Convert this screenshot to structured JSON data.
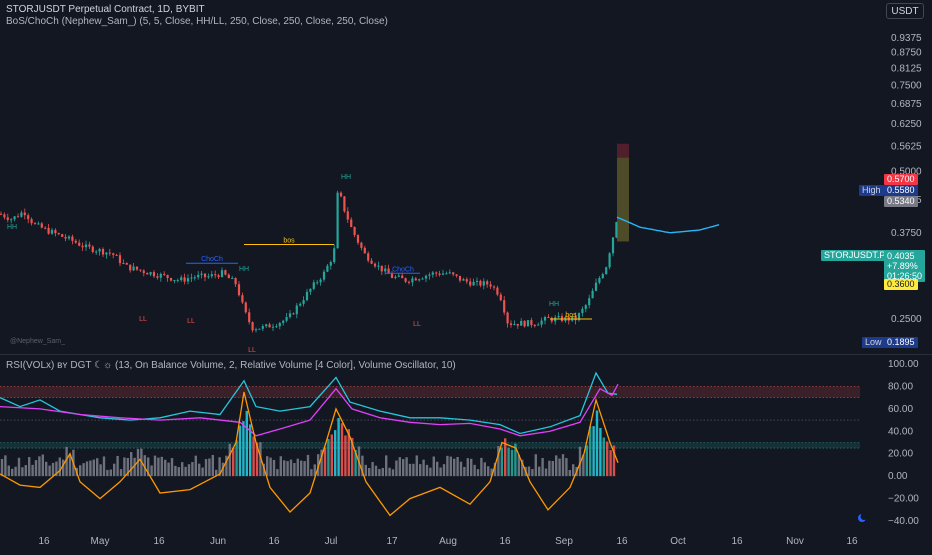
{
  "header": {
    "symbol_line": "STORJUSDT Perpetual Contract, 1D, BYBIT",
    "indicator_line": "BoS/ChoCh (Nephew_Sam_) (5, 5, Close, HH/LL, 250, Close, 250, Close, 250, Close)",
    "currency_button": "USDT"
  },
  "watermark": "@Nephew_Sam_",
  "oscillator_title": "RSI(VOLx) вʏ DGT ☾☼ (13, On Balance Volume, 2, Relative Volume [4 Color], Volume Oscillator, 10)",
  "price_scale": {
    "ticks": [
      "0.9375",
      "0.8750",
      "0.8125",
      "0.7500",
      "0.6875",
      "0.6250",
      "0.5625",
      "0.5000",
      "0.4375",
      "0.3750",
      "0.3125",
      "0.2500"
    ],
    "high_label": "High",
    "high_value": "0.5580",
    "low_label": "Low",
    "low_value": "0.1895",
    "target_value": "0.5700",
    "entry_value": "0.5340",
    "stop_value": "0.3600",
    "symbol_label": "STORJUSDT.P",
    "last_price": "0.4035",
    "change_pct": "+7.89%",
    "countdown": "01:26:50"
  },
  "colors": {
    "background": "#131722",
    "up": "#26a69a",
    "down": "#ef5350",
    "neutral": "#787b86",
    "rsi": "#26c6da",
    "obv": "#e040fb",
    "vol_osc": "#ff9800",
    "structure": "#ffc107",
    "choch": "#2962ff",
    "projection": "#29b6f6",
    "label_hh": "#26a69a",
    "label_ll": "#ef5350"
  },
  "chart_data": [
    {
      "type": "candlestick",
      "y_scale": "log",
      "ylim": [
        0.1895,
        0.9375
      ],
      "x_ticks": [
        "16",
        "May",
        "16",
        "Jun",
        "16",
        "Jul",
        "17",
        "Aug",
        "16",
        "Sep",
        "16",
        "Oct",
        "16",
        "Nov",
        "16"
      ],
      "series": [
        {
          "name": "price",
          "points": [
            {
              "x": 0,
              "y": 0.41
            },
            {
              "x": 12,
              "y": 0.4
            },
            {
              "x": 24,
              "y": 0.415
            },
            {
              "x": 34,
              "y": 0.39
            },
            {
              "x": 46,
              "y": 0.38
            },
            {
              "x": 60,
              "y": 0.37
            },
            {
              "x": 74,
              "y": 0.36
            },
            {
              "x": 86,
              "y": 0.35
            },
            {
              "x": 100,
              "y": 0.345
            },
            {
              "x": 112,
              "y": 0.34
            },
            {
              "x": 126,
              "y": 0.32
            },
            {
              "x": 138,
              "y": 0.315
            },
            {
              "x": 152,
              "y": 0.31
            },
            {
              "x": 166,
              "y": 0.305
            },
            {
              "x": 180,
              "y": 0.3
            },
            {
              "x": 194,
              "y": 0.305
            },
            {
              "x": 208,
              "y": 0.305
            },
            {
              "x": 222,
              "y": 0.31
            },
            {
              "x": 236,
              "y": 0.295
            },
            {
              "x": 244,
              "y": 0.26
            },
            {
              "x": 252,
              "y": 0.24
            },
            {
              "x": 264,
              "y": 0.24
            },
            {
              "x": 276,
              "y": 0.245
            },
            {
              "x": 288,
              "y": 0.25
            },
            {
              "x": 300,
              "y": 0.27
            },
            {
              "x": 312,
              "y": 0.29
            },
            {
              "x": 324,
              "y": 0.31
            },
            {
              "x": 334,
              "y": 0.34
            },
            {
              "x": 338,
              "y": 0.46
            },
            {
              "x": 344,
              "y": 0.42
            },
            {
              "x": 352,
              "y": 0.38
            },
            {
              "x": 364,
              "y": 0.34
            },
            {
              "x": 378,
              "y": 0.32
            },
            {
              "x": 392,
              "y": 0.305
            },
            {
              "x": 406,
              "y": 0.3
            },
            {
              "x": 420,
              "y": 0.305
            },
            {
              "x": 434,
              "y": 0.31
            },
            {
              "x": 448,
              "y": 0.31
            },
            {
              "x": 462,
              "y": 0.3
            },
            {
              "x": 476,
              "y": 0.295
            },
            {
              "x": 490,
              "y": 0.295
            },
            {
              "x": 500,
              "y": 0.28
            },
            {
              "x": 508,
              "y": 0.245
            },
            {
              "x": 520,
              "y": 0.245
            },
            {
              "x": 534,
              "y": 0.245
            },
            {
              "x": 548,
              "y": 0.25
            },
            {
              "x": 562,
              "y": 0.25
            },
            {
              "x": 576,
              "y": 0.25
            },
            {
              "x": 588,
              "y": 0.27
            },
            {
              "x": 598,
              "y": 0.3
            },
            {
              "x": 606,
              "y": 0.32
            },
            {
              "x": 612,
              "y": 0.36
            },
            {
              "x": 617,
              "y": 0.4035
            }
          ]
        },
        {
          "name": "projection",
          "points": [
            {
              "x": 617,
              "y": 0.4035
            },
            {
              "x": 640,
              "y": 0.385
            },
            {
              "x": 670,
              "y": 0.375
            },
            {
              "x": 700,
              "y": 0.38
            },
            {
              "x": 720,
              "y": 0.39
            }
          ]
        }
      ],
      "levels": [
        {
          "label": "bos",
          "y": 0.355
        },
        {
          "label": "ChoCh",
          "y": 0.325
        },
        {
          "label": "bos",
          "y": 0.25
        },
        {
          "label": "ChoCh",
          "y": 0.31
        }
      ],
      "swing_labels": [
        "HH",
        "LL",
        "LL",
        "HH",
        "LL",
        "HH",
        "LL",
        "HH"
      ],
      "position": {
        "target": 0.57,
        "entry": 0.534,
        "stop": 0.36
      }
    },
    {
      "type": "line",
      "ylim": [
        -40,
        100
      ],
      "y_ticks": [
        "100.00",
        "80.00",
        "60.00",
        "40.00",
        "20.00",
        "0.00",
        "−20.00",
        "−40.00"
      ],
      "levels": [
        80,
        70,
        50,
        30,
        25
      ],
      "series": [
        {
          "name": "RSI",
          "points": [
            {
              "x": 0,
              "y": 70
            },
            {
              "x": 20,
              "y": 62
            },
            {
              "x": 40,
              "y": 68
            },
            {
              "x": 60,
              "y": 58
            },
            {
              "x": 80,
              "y": 55
            },
            {
              "x": 100,
              "y": 52
            },
            {
              "x": 130,
              "y": 50
            },
            {
              "x": 160,
              "y": 52
            },
            {
              "x": 190,
              "y": 58
            },
            {
              "x": 220,
              "y": 55
            },
            {
              "x": 244,
              "y": 85
            },
            {
              "x": 256,
              "y": 62
            },
            {
              "x": 280,
              "y": 58
            },
            {
              "x": 310,
              "y": 62
            },
            {
              "x": 336,
              "y": 88
            },
            {
              "x": 350,
              "y": 66
            },
            {
              "x": 380,
              "y": 58
            },
            {
              "x": 410,
              "y": 52
            },
            {
              "x": 440,
              "y": 52
            },
            {
              "x": 470,
              "y": 50
            },
            {
              "x": 500,
              "y": 46
            },
            {
              "x": 520,
              "y": 38
            },
            {
              "x": 550,
              "y": 44
            },
            {
              "x": 580,
              "y": 54
            },
            {
              "x": 596,
              "y": 92
            },
            {
              "x": 608,
              "y": 74
            },
            {
              "x": 617,
              "y": 73
            }
          ]
        },
        {
          "name": "OBV",
          "points": [
            {
              "x": 0,
              "y": 62
            },
            {
              "x": 40,
              "y": 60
            },
            {
              "x": 80,
              "y": 55
            },
            {
              "x": 120,
              "y": 52
            },
            {
              "x": 160,
              "y": 50
            },
            {
              "x": 200,
              "y": 52
            },
            {
              "x": 240,
              "y": 48
            },
            {
              "x": 256,
              "y": 36
            },
            {
              "x": 280,
              "y": 42
            },
            {
              "x": 310,
              "y": 50
            },
            {
              "x": 336,
              "y": 78
            },
            {
              "x": 352,
              "y": 60
            },
            {
              "x": 380,
              "y": 52
            },
            {
              "x": 410,
              "y": 48
            },
            {
              "x": 440,
              "y": 46
            },
            {
              "x": 470,
              "y": 47
            },
            {
              "x": 500,
              "y": 42
            },
            {
              "x": 520,
              "y": 36
            },
            {
              "x": 550,
              "y": 40
            },
            {
              "x": 580,
              "y": 48
            },
            {
              "x": 600,
              "y": 78
            },
            {
              "x": 612,
              "y": 72
            },
            {
              "x": 618,
              "y": 82
            }
          ]
        },
        {
          "name": "Volume Oscillator",
          "points": [
            {
              "x": 0,
              "y": 2
            },
            {
              "x": 20,
              "y": -8
            },
            {
              "x": 40,
              "y": -10
            },
            {
              "x": 60,
              "y": 5
            },
            {
              "x": 70,
              "y": 20
            },
            {
              "x": 80,
              "y": -5
            },
            {
              "x": 100,
              "y": -20
            },
            {
              "x": 120,
              "y": -5
            },
            {
              "x": 140,
              "y": 15
            },
            {
              "x": 160,
              "y": -15
            },
            {
              "x": 190,
              "y": -12
            },
            {
              "x": 220,
              "y": 2
            },
            {
              "x": 236,
              "y": 30
            },
            {
              "x": 244,
              "y": 75
            },
            {
              "x": 256,
              "y": 30
            },
            {
              "x": 270,
              "y": -10
            },
            {
              "x": 290,
              "y": -32
            },
            {
              "x": 310,
              "y": -15
            },
            {
              "x": 326,
              "y": 30
            },
            {
              "x": 336,
              "y": 60
            },
            {
              "x": 350,
              "y": 35
            },
            {
              "x": 366,
              "y": -5
            },
            {
              "x": 390,
              "y": -35
            },
            {
              "x": 410,
              "y": -20
            },
            {
              "x": 440,
              "y": -10
            },
            {
              "x": 470,
              "y": -25
            },
            {
              "x": 490,
              "y": -5
            },
            {
              "x": 502,
              "y": 30
            },
            {
              "x": 516,
              "y": 25
            },
            {
              "x": 530,
              "y": -5
            },
            {
              "x": 548,
              "y": -30
            },
            {
              "x": 570,
              "y": -10
            },
            {
              "x": 584,
              "y": 20
            },
            {
              "x": 596,
              "y": 68
            },
            {
              "x": 610,
              "y": 30
            },
            {
              "x": 618,
              "y": 12
            }
          ]
        }
      ]
    }
  ]
}
